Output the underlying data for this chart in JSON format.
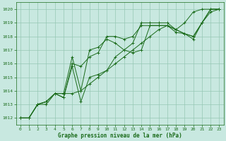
{
  "title": "Graphe pression niveau de la mer (hPa)",
  "bg_color": "#c8e8e0",
  "line_color": "#1a6b1a",
  "grid_color": "#96c8b4",
  "xlim": [
    -0.5,
    23.5
  ],
  "ylim": [
    1011.5,
    1020.5
  ],
  "yticks": [
    1012,
    1013,
    1014,
    1015,
    1016,
    1017,
    1018,
    1019,
    1020
  ],
  "xticks": [
    0,
    1,
    2,
    3,
    4,
    5,
    6,
    7,
    8,
    9,
    10,
    11,
    12,
    13,
    14,
    15,
    16,
    17,
    18,
    19,
    20,
    21,
    22,
    23
  ],
  "series": [
    [
      1012,
      1012,
      1013,
      1013,
      1013.8,
      1013.8,
      1013.8,
      1014.0,
      1014.5,
      1015.0,
      1015.5,
      1016.0,
      1016.5,
      1017.0,
      1017.5,
      1018.0,
      1018.5,
      1018.8,
      1018.5,
      1019.0,
      1019.8,
      1020.0,
      1020.0,
      1020.0
    ],
    [
      1012,
      1012,
      1013,
      1013.2,
      1013.8,
      1013.5,
      1015.8,
      1013.2,
      1015.0,
      1015.2,
      1015.5,
      1016.5,
      1017.0,
      1016.8,
      1017.0,
      1018.8,
      1018.8,
      1018.8,
      1018.5,
      1018.2,
      1017.8,
      1019.0,
      1020.0,
      1020.0
    ],
    [
      1012,
      1012,
      1013,
      1013.2,
      1013.8,
      1013.5,
      1016.0,
      1015.8,
      1016.5,
      1016.8,
      1018.0,
      1018.0,
      1017.8,
      1018.0,
      1018.8,
      1018.8,
      1018.8,
      1018.8,
      1018.3,
      1018.2,
      1018.0,
      1019.0,
      1019.8,
      1020.0
    ],
    [
      1012,
      1012,
      1013,
      1013.2,
      1013.8,
      1013.8,
      1016.5,
      1014.0,
      1017.0,
      1017.2,
      1017.8,
      1017.5,
      1017.0,
      1017.5,
      1019.0,
      1019.0,
      1019.0,
      1019.0,
      1018.5,
      1018.2,
      1018.0,
      1019.0,
      1020.0,
      1020.0
    ]
  ]
}
